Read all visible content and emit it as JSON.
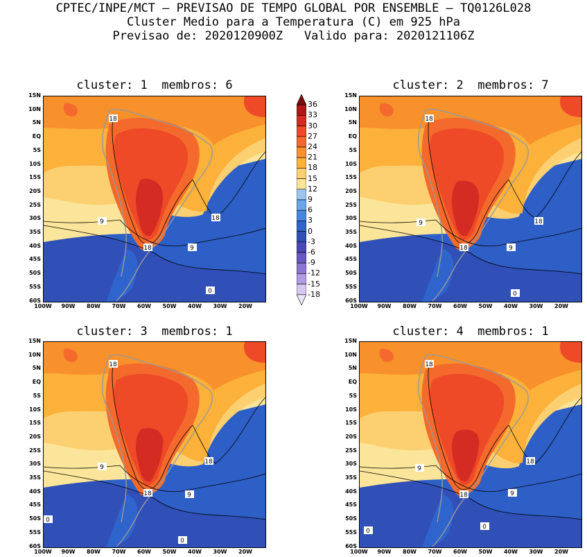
{
  "header": {
    "line1": "CPTEC/INPE/MCT — PREVISAO DE TEMPO GLOBAL POR ENSEMBLE — TQ0126L028",
    "line2": "Cluster Medio para a Temperatura (C) em 925 hPa",
    "line3": "Previsao de: 2020120900Z   Valido para: 2020121106Z"
  },
  "panels": [
    {
      "title": "cluster: 1  membros: 6",
      "labels": [
        "18",
        "18",
        "9",
        "18",
        "9",
        "0"
      ]
    },
    {
      "title": "cluster: 2  membros: 7",
      "labels": [
        "18",
        "18",
        "9",
        "18",
        "9",
        "0"
      ]
    },
    {
      "title": "cluster: 3  membros: 1",
      "labels": [
        "18",
        "18",
        "9",
        "18",
        "9",
        "0",
        "0"
      ]
    },
    {
      "title": "cluster: 4  membros: 1",
      "labels": [
        "18",
        "18",
        "9",
        "18",
        "9",
        "0",
        "0"
      ]
    }
  ],
  "axes": {
    "lat_ticks": [
      "15N",
      "10N",
      "5N",
      "EQ",
      "5S",
      "10S",
      "15S",
      "20S",
      "25S",
      "30S",
      "35S",
      "40S",
      "45S",
      "50S",
      "55S",
      "60S"
    ],
    "lon_ticks": [
      "100W",
      "90W",
      "80W",
      "70W",
      "60W",
      "50W",
      "40W",
      "30W",
      "20W"
    ]
  },
  "colorbar": {
    "labels": [
      "36",
      "33",
      "30",
      "27",
      "24",
      "21",
      "18",
      "15",
      "12",
      "9",
      "6",
      "3",
      "0",
      "-3",
      "-6",
      "-9",
      "-12",
      "-15",
      "-18"
    ],
    "colors": [
      "#7a0c0c",
      "#b01818",
      "#d42b22",
      "#ee4a28",
      "#f46a2c",
      "#f8902c",
      "#fbb13a",
      "#fcd070",
      "#fbe59a",
      "#9cc6f0",
      "#6aa6ea",
      "#4a86e0",
      "#2f64cc",
      "#3050b8",
      "#4a48b8",
      "#6a56c4",
      "#8c76d2",
      "#b29ce2",
      "#d6c8f0",
      "#ece4f8"
    ]
  }
}
